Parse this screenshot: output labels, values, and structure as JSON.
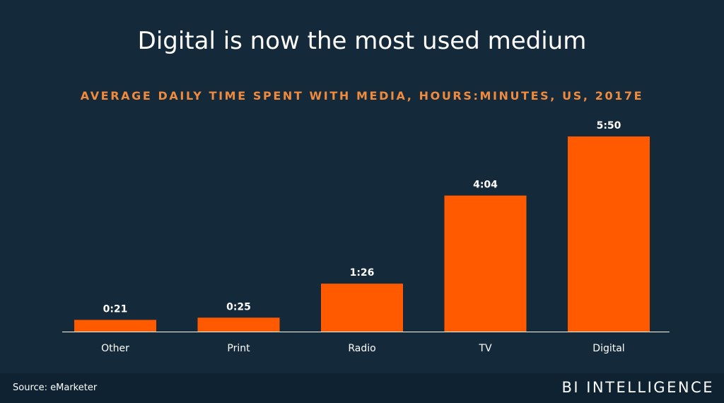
{
  "header": {
    "title": "Digital is now the most used medium",
    "subtitle": "AVERAGE DAILY TIME SPENT WITH MEDIA, HOURS:MINUTES, US, 2017E"
  },
  "chart_data": {
    "type": "bar",
    "categories": [
      "Other",
      "Print",
      "Radio",
      "TV",
      "Digital"
    ],
    "values_minutes": [
      21,
      25,
      86,
      244,
      350
    ],
    "value_labels": [
      "0:21",
      "0:25",
      "1:26",
      "4:04",
      "5:50"
    ],
    "ylim_minutes": [
      0,
      350
    ],
    "bar_color": "#ff5a00",
    "grid": false
  },
  "footer": {
    "source": "Source: eMarketer",
    "brand": "BI INTELLIGENCE"
  },
  "colors": {
    "background": "#14293a",
    "subtitle": "#f08a3c",
    "axis": "#ffffff"
  }
}
